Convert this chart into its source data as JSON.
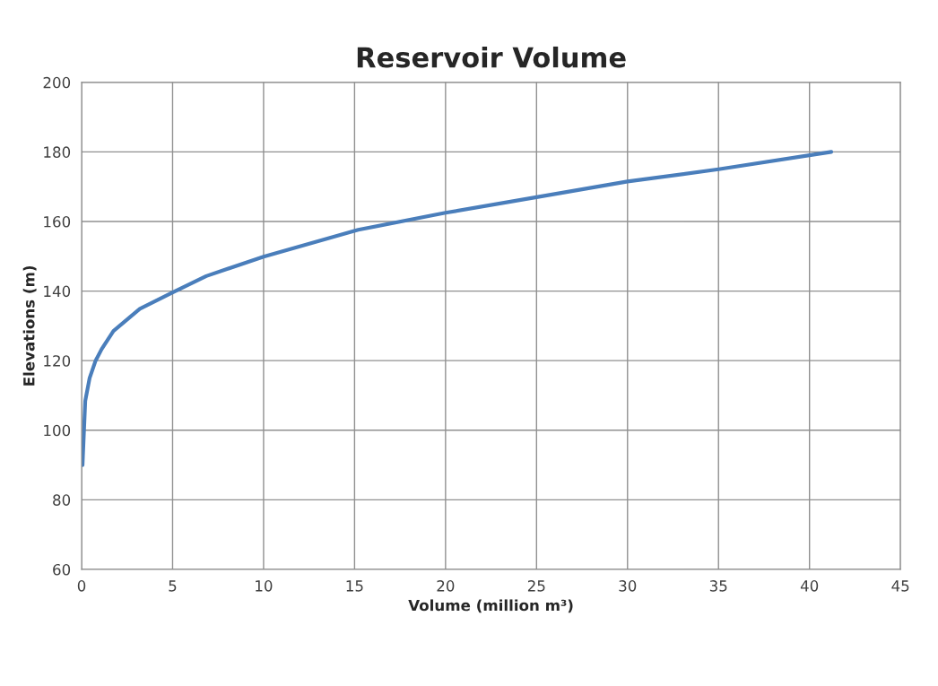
{
  "chart_data": {
    "type": "line",
    "title": "Reservoir Volume",
    "xlabel": "Volume (million m³)",
    "ylabel": "Elevations (m)",
    "xlim": [
      0,
      45
    ],
    "xticks": [
      0,
      5,
      10,
      15,
      20,
      25,
      30,
      35,
      40,
      45
    ],
    "ylim": [
      60,
      200
    ],
    "yticks": [
      60,
      80,
      100,
      120,
      140,
      160,
      180,
      200
    ],
    "grid": true,
    "series": [
      {
        "color": "#4a7ebb",
        "x": [
          0.05,
          0.2,
          0.44,
          0.77,
          1.1,
          1.75,
          3.2,
          5,
          6.85,
          10,
          15.2,
          20,
          25,
          30,
          35,
          41.2
        ],
        "values": [
          90,
          108.4,
          115,
          120,
          123.3,
          128.5,
          134.9,
          139.6,
          144.3,
          149.9,
          157.6,
          162.5,
          167,
          171.5,
          175,
          180
        ]
      }
    ]
  }
}
